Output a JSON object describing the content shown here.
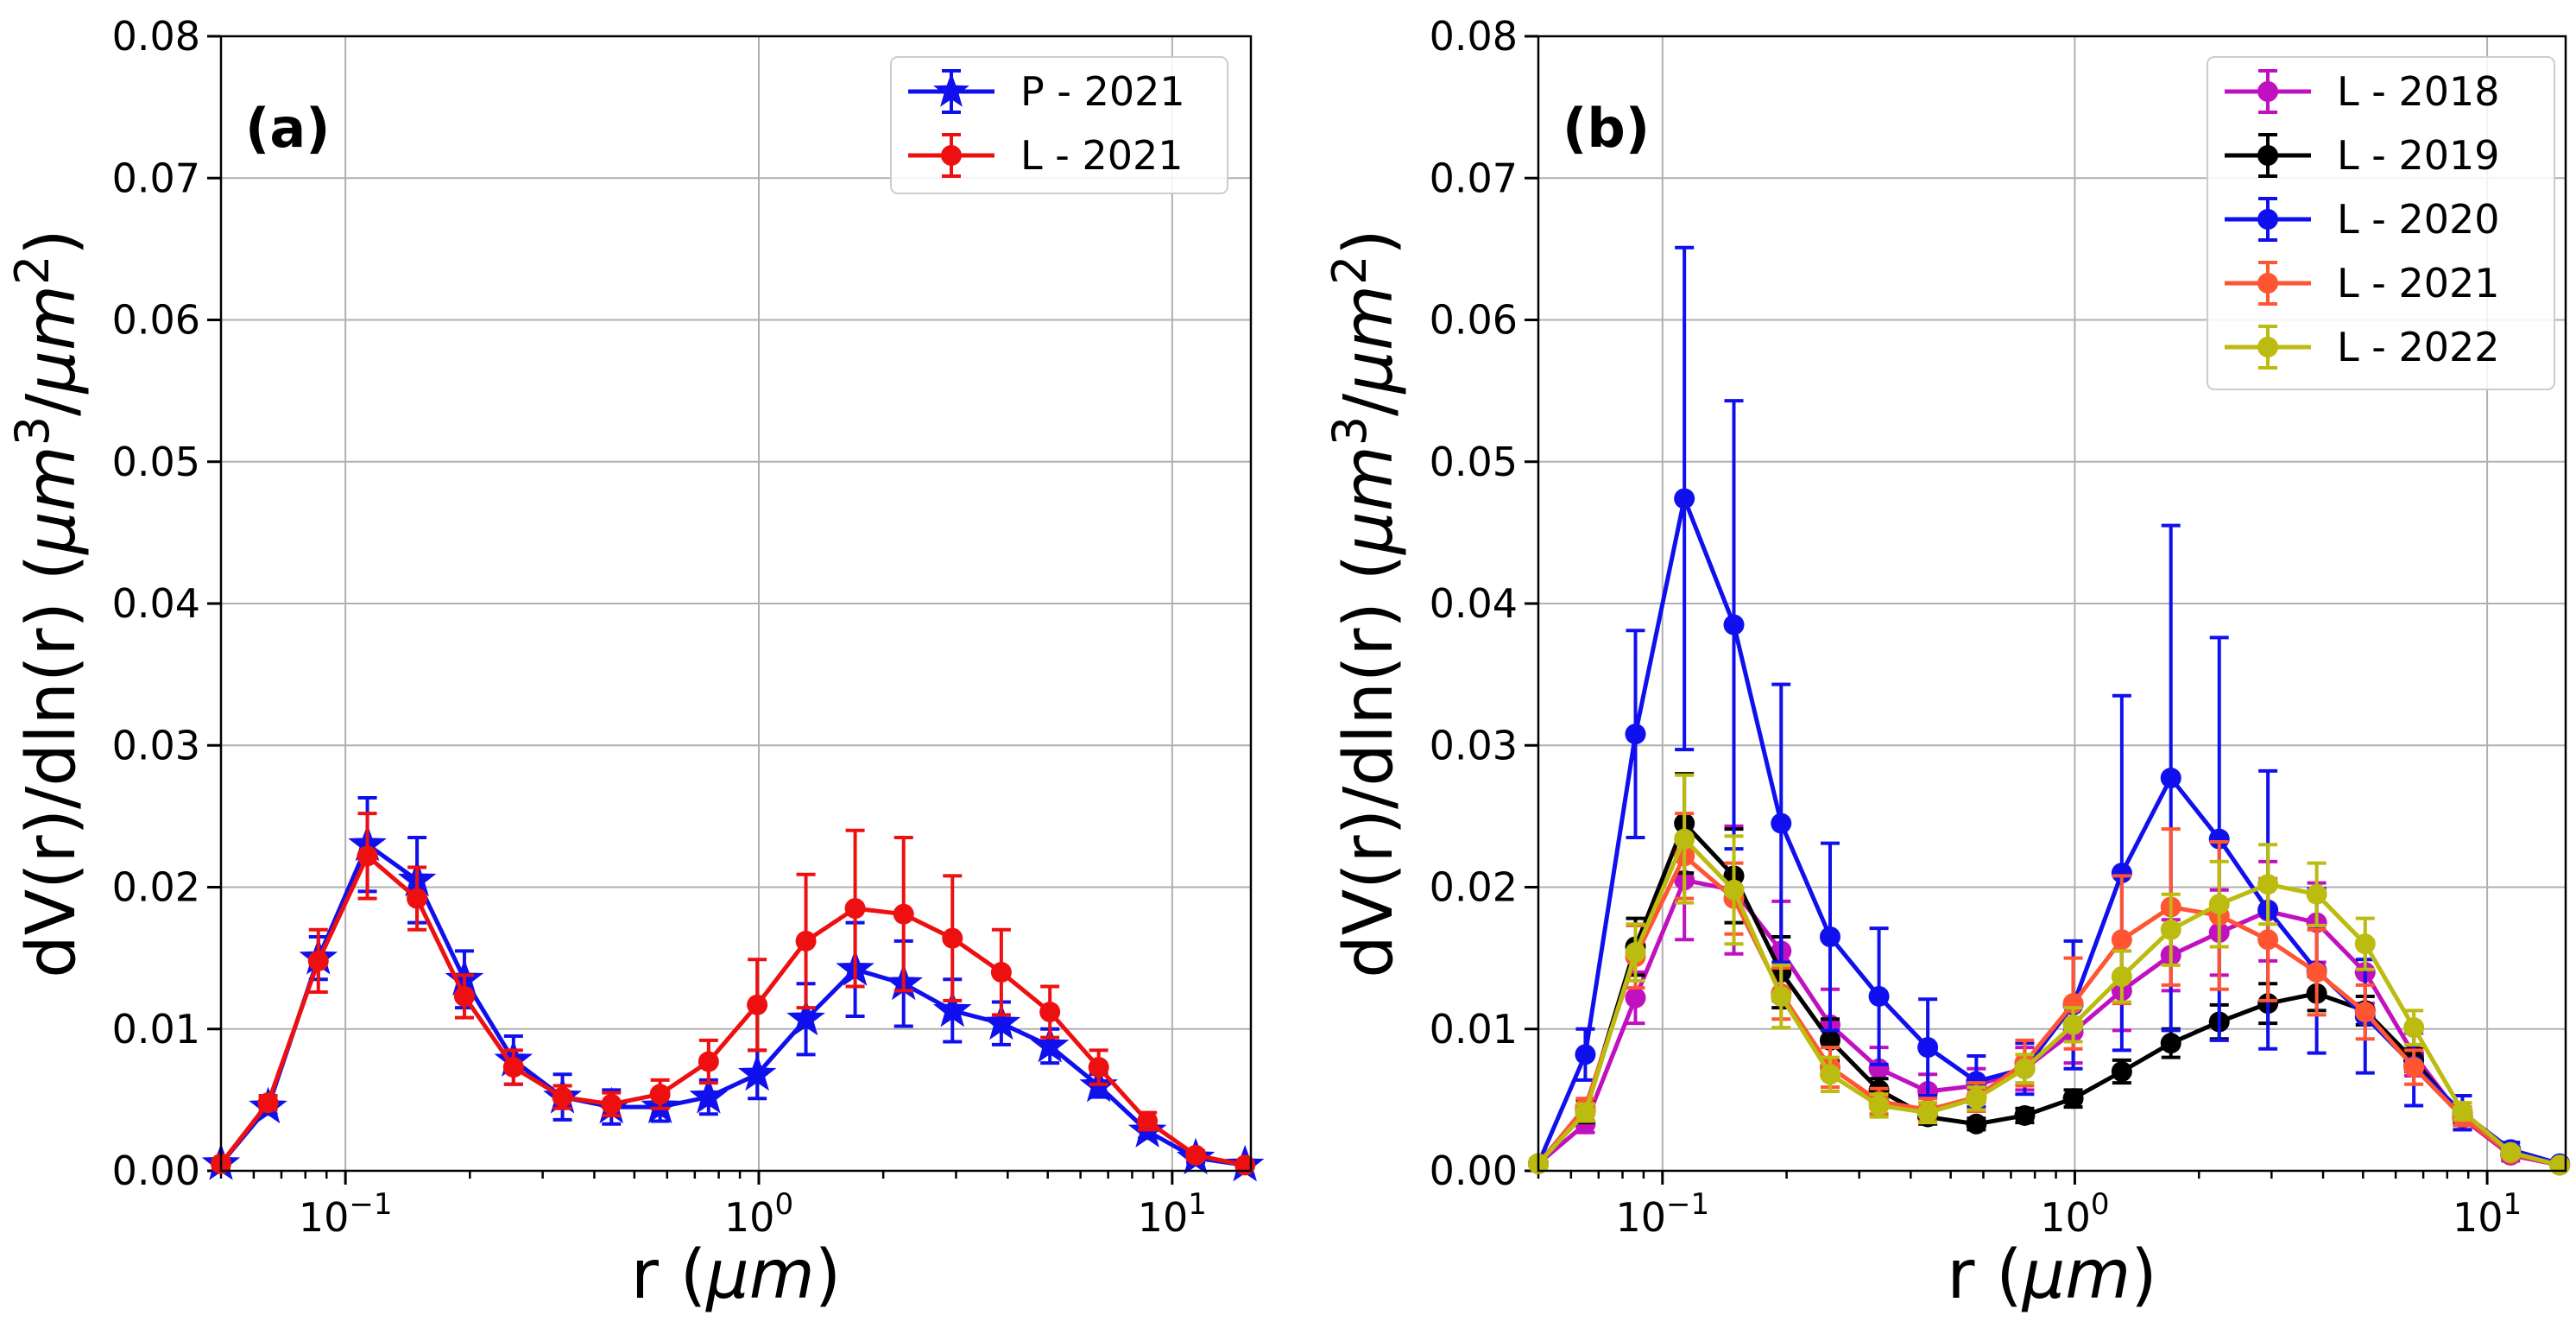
{
  "chart_data": [
    {
      "type": "line",
      "panel_label": "(a)",
      "xlabel_main": "r (",
      "xlabel_unit": "μm",
      "xlabel_close": ")",
      "ylabel": "dV(r)/dln(r) (μm³/μm²)",
      "ylabel_parts": {
        "base": "dV(r)/dln(r) (",
        "mu1": "μm",
        "sup1": "3",
        "slash": "/",
        "mu2": "μm",
        "sup2": "2",
        "close": ")"
      },
      "xscale": "log",
      "xlim": [
        0.05,
        15.5
      ],
      "ylim": [
        0,
        0.08
      ],
      "grid": true,
      "legend_position": "top-right",
      "x_ticks": [
        {
          "value": 0.1,
          "base": "10",
          "exp": "−1"
        },
        {
          "value": 1,
          "base": "10",
          "exp": "0"
        },
        {
          "value": 10,
          "base": "10",
          "exp": "1"
        }
      ],
      "y_ticks": [
        "0.00",
        "0.01",
        "0.02",
        "0.03",
        "0.04",
        "0.05",
        "0.06",
        "0.07",
        "0.08"
      ],
      "x": [
        0.05,
        0.065,
        0.086,
        0.113,
        0.149,
        0.194,
        0.255,
        0.335,
        0.44,
        0.577,
        0.756,
        0.991,
        1.3,
        1.71,
        2.24,
        2.94,
        3.86,
        5.06,
        6.64,
        8.71,
        11.4,
        15
      ],
      "series": [
        {
          "name": "P - 2021",
          "color": "#1010ee",
          "marker": "star",
          "values": [
            0.0005,
            0.0045,
            0.015,
            0.023,
            0.0205,
            0.0135,
            0.0078,
            0.0052,
            0.0045,
            0.0045,
            0.0052,
            0.0068,
            0.0107,
            0.0142,
            0.0132,
            0.0113,
            0.0104,
            0.0088,
            0.006,
            0.0028,
            0.0009,
            0.0004
          ],
          "errors": [
            0.0003,
            0.0005,
            0.0015,
            0.0033,
            0.003,
            0.002,
            0.0017,
            0.0016,
            0.0012,
            0.001,
            0.0012,
            0.0017,
            0.0025,
            0.0033,
            0.003,
            0.0022,
            0.0015,
            0.0012,
            0.0008,
            0.0005,
            0.0003,
            0.0002
          ]
        },
        {
          "name": "L - 2021",
          "color": "#ee1010",
          "marker": "circle",
          "values": [
            0.0005,
            0.0048,
            0.0148,
            0.0222,
            0.0192,
            0.0123,
            0.0073,
            0.0052,
            0.0047,
            0.0054,
            0.0077,
            0.0117,
            0.0162,
            0.0185,
            0.0181,
            0.0164,
            0.014,
            0.0112,
            0.0073,
            0.0035,
            0.0011,
            0.0004
          ],
          "errors": [
            0.0003,
            0.0005,
            0.0022,
            0.003,
            0.0022,
            0.0015,
            0.0012,
            0.0008,
            0.0008,
            0.001,
            0.0015,
            0.0032,
            0.0047,
            0.0055,
            0.0054,
            0.0044,
            0.003,
            0.0018,
            0.0012,
            0.0006,
            0.0003,
            0.0002
          ]
        }
      ]
    },
    {
      "type": "line",
      "panel_label": "(b)",
      "xlabel_main": "r (",
      "xlabel_unit": "μm",
      "xlabel_close": ")",
      "ylabel": "dV(r)/dln(r) (μm³/μm²)",
      "ylabel_parts": {
        "base": "dV(r)/dln(r) (",
        "mu1": "μm",
        "sup1": "3",
        "slash": "/",
        "mu2": "μm",
        "sup2": "2",
        "close": ")"
      },
      "xscale": "log",
      "xlim": [
        0.05,
        15.5
      ],
      "ylim": [
        0,
        0.08
      ],
      "grid": true,
      "legend_position": "top-right",
      "x_ticks": [
        {
          "value": 0.1,
          "base": "10",
          "exp": "−1"
        },
        {
          "value": 1,
          "base": "10",
          "exp": "0"
        },
        {
          "value": 10,
          "base": "10",
          "exp": "1"
        }
      ],
      "y_ticks": [
        "0.00",
        "0.01",
        "0.02",
        "0.03",
        "0.04",
        "0.05",
        "0.06",
        "0.07",
        "0.08"
      ],
      "x": [
        0.05,
        0.065,
        0.086,
        0.113,
        0.149,
        0.194,
        0.255,
        0.335,
        0.44,
        0.577,
        0.756,
        0.991,
        1.3,
        1.71,
        2.24,
        2.94,
        3.86,
        5.06,
        6.64,
        8.71,
        11.4,
        15
      ],
      "series": [
        {
          "name": "L - 2018",
          "color": "#c010c0",
          "marker": "circle",
          "values": [
            0.0005,
            0.0033,
            0.0122,
            0.0205,
            0.0198,
            0.0155,
            0.0103,
            0.0072,
            0.0056,
            0.006,
            0.0072,
            0.0098,
            0.0127,
            0.0152,
            0.0168,
            0.0183,
            0.0175,
            0.014,
            0.0082,
            0.0037,
            0.0011,
            0.0004
          ],
          "errors": [
            0.0003,
            0.0006,
            0.0018,
            0.0042,
            0.0045,
            0.0035,
            0.0025,
            0.0015,
            0.0012,
            0.0012,
            0.0015,
            0.0022,
            0.0028,
            0.0025,
            0.003,
            0.0035,
            0.0028,
            0.0022,
            0.0015,
            0.0008,
            0.0004,
            0.0002
          ]
        },
        {
          "name": "L - 2019",
          "color": "#000000",
          "marker": "circle",
          "values": [
            0.0005,
            0.0042,
            0.0158,
            0.0245,
            0.0208,
            0.014,
            0.0092,
            0.0057,
            0.0038,
            0.0033,
            0.0039,
            0.0051,
            0.007,
            0.009,
            0.0105,
            0.0118,
            0.0125,
            0.0113,
            0.0078,
            0.0038,
            0.0012,
            0.0004
          ],
          "errors": [
            0.0003,
            0.0008,
            0.002,
            0.0035,
            0.0033,
            0.0025,
            0.0015,
            0.0008,
            0.0005,
            0.0004,
            0.0005,
            0.0006,
            0.0008,
            0.001,
            0.0012,
            0.0014,
            0.0012,
            0.001,
            0.0008,
            0.0005,
            0.0003,
            0.0002
          ]
        },
        {
          "name": "L - 2020",
          "color": "#1010ee",
          "marker": "circle",
          "values": [
            0.0005,
            0.0082,
            0.0308,
            0.0474,
            0.0385,
            0.0245,
            0.0165,
            0.0123,
            0.0087,
            0.0063,
            0.0072,
            0.0117,
            0.021,
            0.0277,
            0.0234,
            0.0184,
            0.0141,
            0.0109,
            0.0074,
            0.0041,
            0.0015,
            0.0005
          ],
          "errors": [
            0.0003,
            0.0018,
            0.0073,
            0.0177,
            0.0158,
            0.0098,
            0.0066,
            0.0048,
            0.0034,
            0.0018,
            0.0018,
            0.0045,
            0.0125,
            0.0178,
            0.0142,
            0.0098,
            0.0058,
            0.004,
            0.0028,
            0.0012,
            0.0005,
            0.0002
          ]
        },
        {
          "name": "L - 2021",
          "color": "#ff5533",
          "marker": "circle",
          "values": [
            0.0005,
            0.0045,
            0.0151,
            0.0222,
            0.0192,
            0.0125,
            0.0073,
            0.0049,
            0.0043,
            0.0052,
            0.0076,
            0.0118,
            0.0163,
            0.0186,
            0.018,
            0.0163,
            0.014,
            0.0112,
            0.0073,
            0.0038,
            0.0012,
            0.0004
          ],
          "errors": [
            0.0003,
            0.0006,
            0.0022,
            0.003,
            0.0025,
            0.0018,
            0.0014,
            0.0009,
            0.0008,
            0.001,
            0.0016,
            0.0032,
            0.0045,
            0.0055,
            0.0052,
            0.0043,
            0.003,
            0.0019,
            0.0012,
            0.0006,
            0.0003,
            0.0002
          ]
        },
        {
          "name": "L - 2022",
          "color": "#bbbb10",
          "marker": "circle",
          "values": [
            0.0005,
            0.0041,
            0.0154,
            0.0234,
            0.0198,
            0.0123,
            0.0068,
            0.0046,
            0.0041,
            0.0051,
            0.0072,
            0.0103,
            0.0137,
            0.017,
            0.0188,
            0.0202,
            0.0195,
            0.016,
            0.0101,
            0.0042,
            0.0013,
            0.0004
          ],
          "errors": [
            0.0003,
            0.0006,
            0.002,
            0.0045,
            0.0038,
            0.0022,
            0.0012,
            0.0008,
            0.0007,
            0.0008,
            0.001,
            0.0012,
            0.0018,
            0.0025,
            0.003,
            0.0028,
            0.0022,
            0.0018,
            0.0012,
            0.0006,
            0.0003,
            0.0002
          ]
        }
      ]
    }
  ]
}
